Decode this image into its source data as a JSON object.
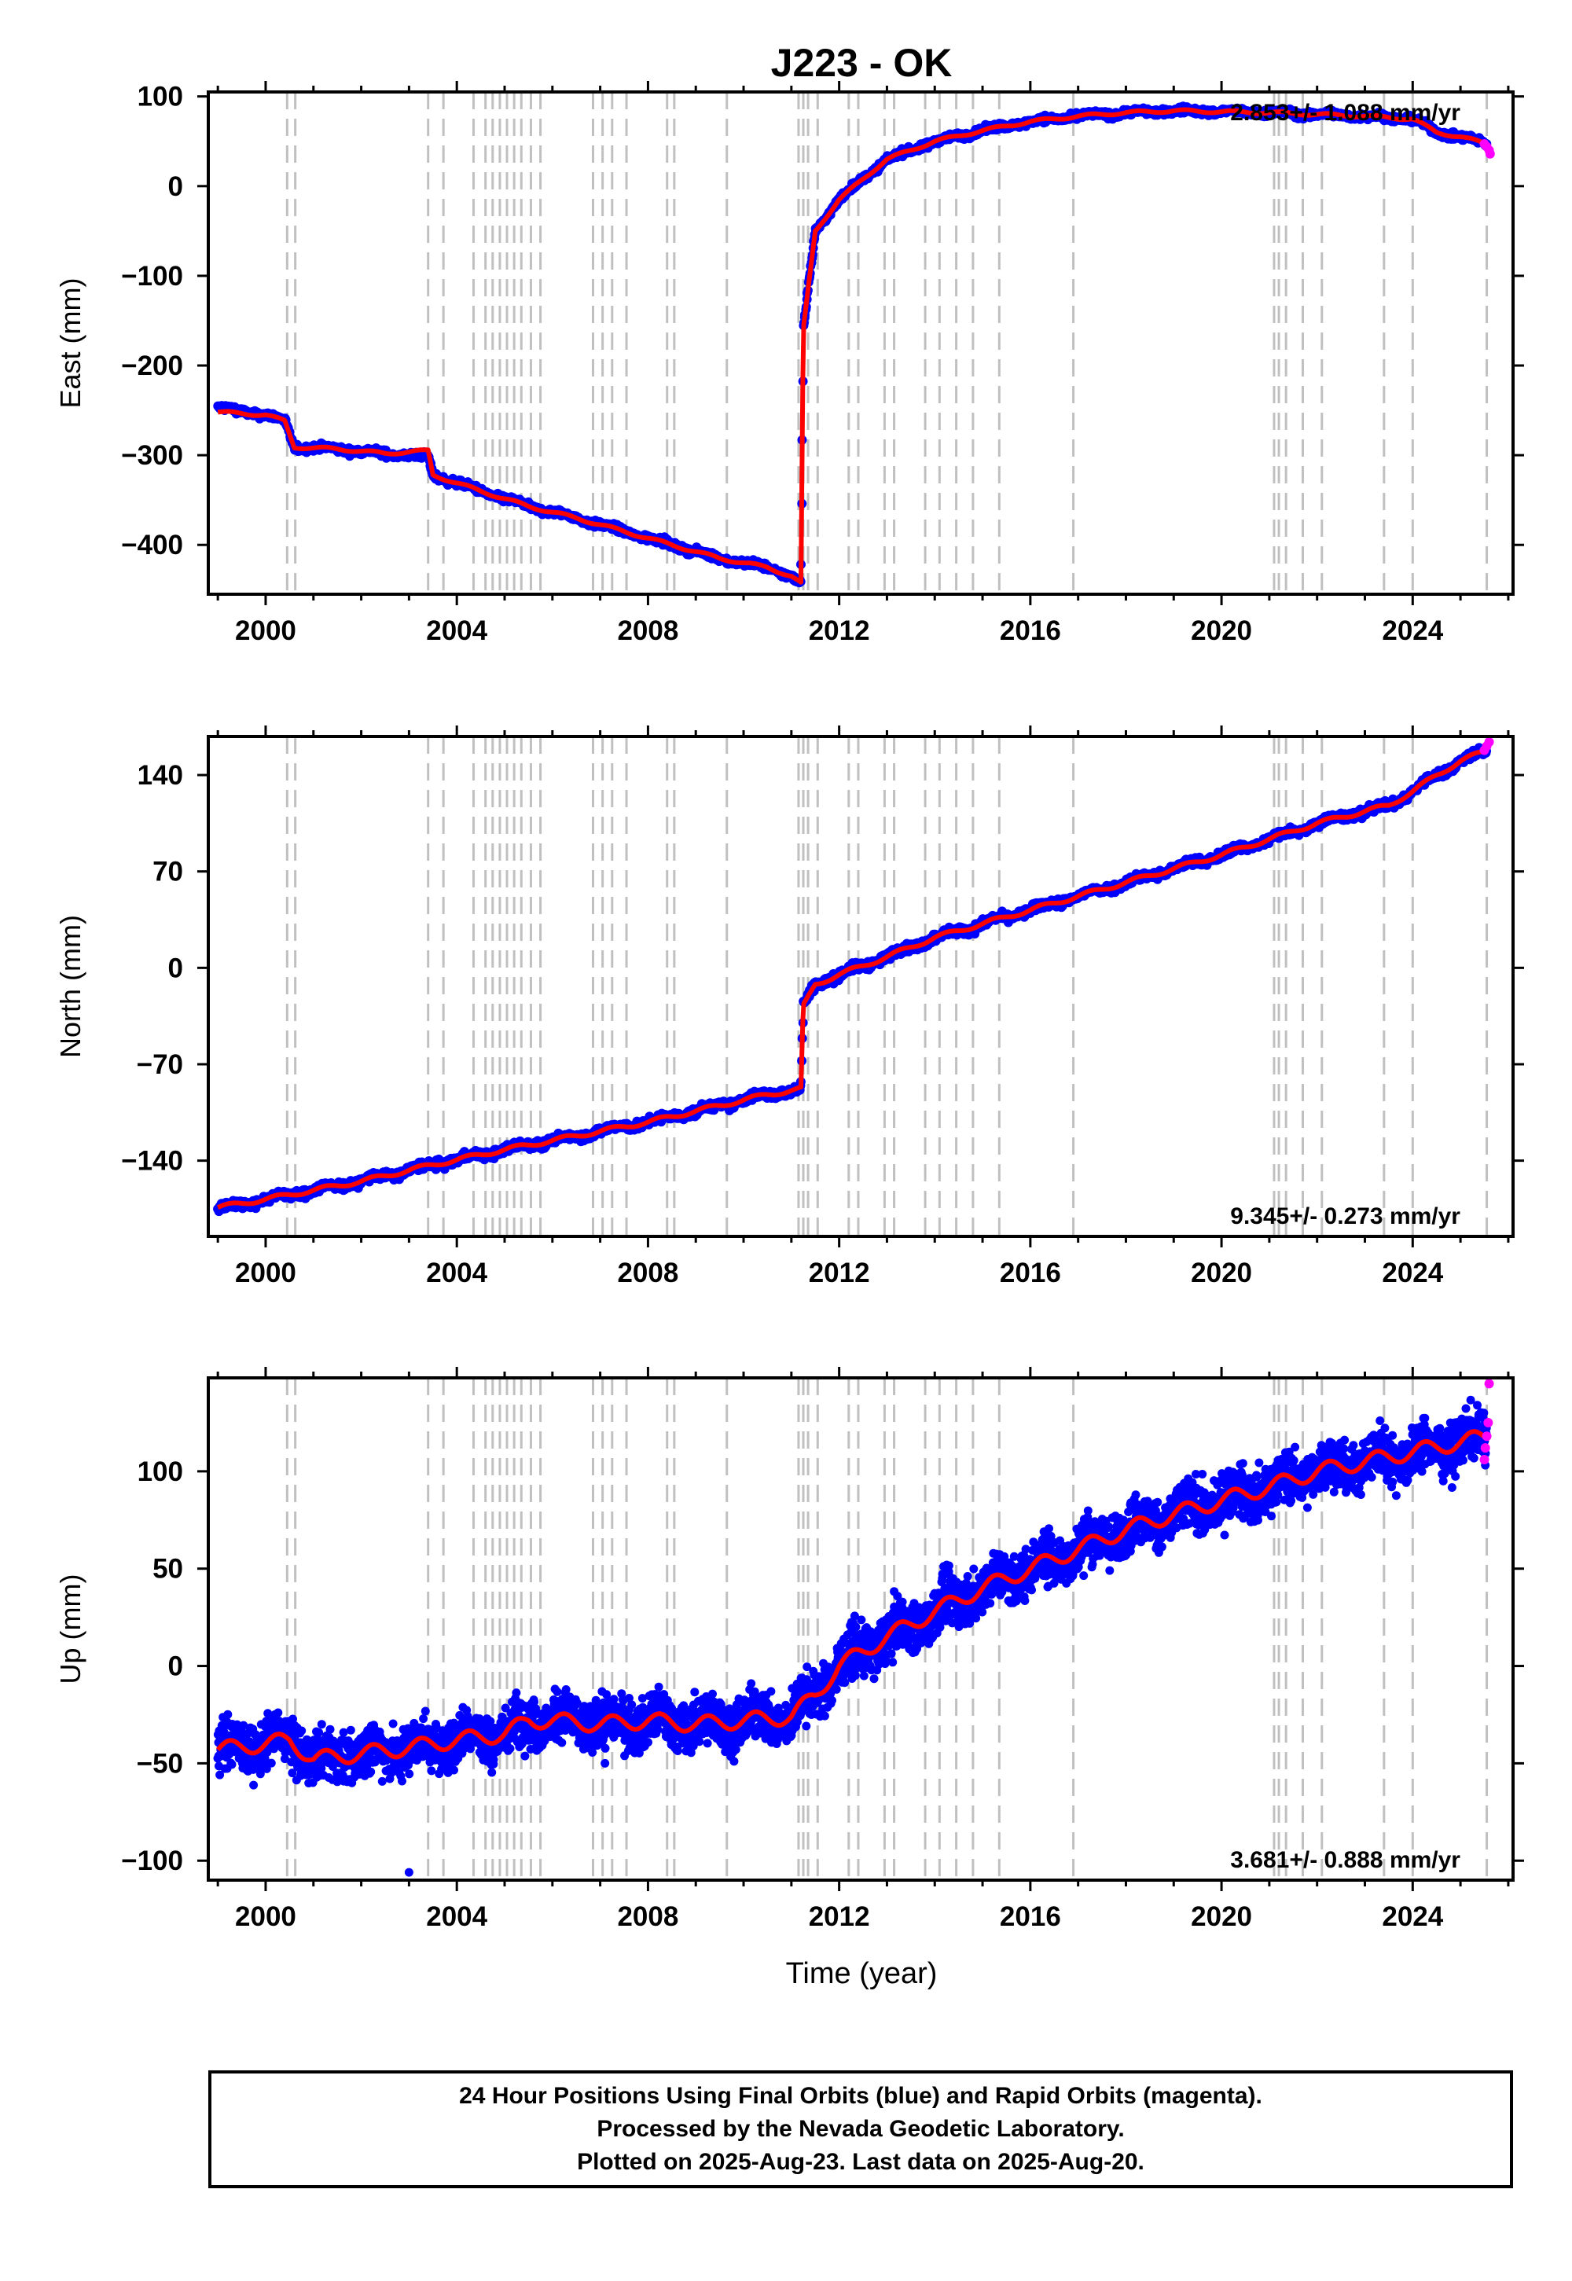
{
  "title": "J223 - OK",
  "xlabel": "Time (year)",
  "notes": [
    "24 Hour Positions Using Final Orbits (blue) and Rapid Orbits (magenta).",
    "Processed by the Nevada Geodetic Laboratory.",
    "Plotted on 2025-Aug-23. Last data on 2025-Aug-20."
  ],
  "colors": {
    "final": "#0000ff",
    "rapid": "#ff00ff",
    "model": "#ff0000",
    "event_lines": "#c0c0c0"
  },
  "chart_data": [
    {
      "type": "scatter",
      "panel": "east",
      "ylabel": "East (mm)",
      "xlim": [
        1998.8,
        2026.1
      ],
      "ylim": [
        -455,
        105
      ],
      "xticks": [
        2000,
        2004,
        2008,
        2012,
        2016,
        2020,
        2024
      ],
      "yticks": [
        100,
        0,
        -100,
        -200,
        -300,
        -400
      ],
      "ytick_labels": [
        "100",
        "0",
        "−100",
        "−200",
        "−300",
        "−400"
      ],
      "rate_text": "2.853+/- 1.088 mm/yr",
      "rate_position": "top-right",
      "grid": false,
      "series": [
        {
          "name": "Final Orbits (blue)",
          "x": [
            1999.0,
            2000.0,
            2000.4,
            2000.6,
            2001.5,
            2002.5,
            2003.4,
            2003.5,
            2004.5,
            2005.5,
            2006.5,
            2007.5,
            2008.5,
            2009.5,
            2010.5,
            2011.0,
            2011.2,
            2011.25,
            2011.5,
            2012.0,
            2012.5,
            2013.0,
            2014.0,
            2015.0,
            2016.0,
            2017.0,
            2018.0,
            2019.0,
            2020.0,
            2021.0,
            2022.0,
            2023.0,
            2024.0,
            2024.5,
            2025.0,
            2025.55
          ],
          "y": [
            -247,
            -255,
            -262,
            -291,
            -293,
            -298,
            -302,
            -322,
            -340,
            -357,
            -370,
            -385,
            -400,
            -415,
            -425,
            -435,
            -443,
            -160,
            -50,
            -15,
            8,
            30,
            50,
            62,
            72,
            78,
            82,
            84,
            83,
            82,
            80,
            78,
            75,
            60,
            55,
            47
          ]
        },
        {
          "name": "Rapid Orbits (magenta)",
          "x": [
            2025.5,
            2025.55,
            2025.6,
            2025.62
          ],
          "y": [
            47,
            44,
            40,
            36
          ]
        },
        {
          "name": "Model",
          "x": [
            1999.0,
            2000.0,
            2000.4,
            2000.6,
            2001.5,
            2002.5,
            2003.4,
            2003.5,
            2004.5,
            2005.5,
            2006.5,
            2007.5,
            2008.5,
            2009.5,
            2010.5,
            2011.0,
            2011.2,
            2011.25,
            2011.5,
            2012.0,
            2012.5,
            2013.0,
            2014.0,
            2015.0,
            2016.0,
            2017.0,
            2018.0,
            2019.0,
            2020.0,
            2021.0,
            2022.0,
            2023.0,
            2024.0,
            2024.5,
            2025.0,
            2025.55
          ],
          "y": [
            -252,
            -255,
            -262,
            -291,
            -293,
            -298,
            -295,
            -322,
            -340,
            -357,
            -370,
            -385,
            -400,
            -415,
            -425,
            -435,
            -443,
            -160,
            -50,
            -15,
            8,
            30,
            50,
            62,
            72,
            78,
            82,
            84,
            83,
            82,
            80,
            78,
            75,
            60,
            55,
            47
          ]
        }
      ]
    },
    {
      "type": "scatter",
      "panel": "north",
      "ylabel": "North (mm)",
      "xlim": [
        1998.8,
        2026.1
      ],
      "ylim": [
        -195,
        168
      ],
      "xticks": [
        2000,
        2004,
        2008,
        2012,
        2016,
        2020,
        2024
      ],
      "yticks": [
        140,
        70,
        0,
        -70,
        -140
      ],
      "ytick_labels": [
        "140",
        "70",
        "0",
        "−70",
        "−140"
      ],
      "rate_text": "9.345+/- 0.273 mm/yr",
      "rate_position": "bottom-right",
      "grid": false,
      "series": [
        {
          "name": "Final Orbits (blue)",
          "x": [
            1999.0,
            2000.0,
            2002.0,
            2003.5,
            2005.0,
            2006.5,
            2008.0,
            2009.5,
            2010.5,
            2011.2,
            2011.25,
            2011.5,
            2012.0,
            2013.0,
            2014.0,
            2016.0,
            2018.0,
            2020.0,
            2022.0,
            2023.5,
            2024.0,
            2024.5,
            2025.0,
            2025.55
          ],
          "y": [
            -175,
            -168,
            -155,
            -143,
            -132,
            -122,
            -112,
            -100,
            -92,
            -88,
            -28,
            -12,
            -5,
            8,
            22,
            42,
            62,
            82,
            105,
            118,
            128,
            140,
            150,
            158
          ]
        },
        {
          "name": "Rapid Orbits (magenta)",
          "x": [
            2025.5,
            2025.55,
            2025.6
          ],
          "y": [
            158,
            161,
            164
          ]
        },
        {
          "name": "Model",
          "x": [
            1999.0,
            2000.0,
            2002.0,
            2003.5,
            2005.0,
            2006.5,
            2008.0,
            2009.5,
            2010.5,
            2011.2,
            2011.25,
            2011.5,
            2012.0,
            2013.0,
            2014.0,
            2016.0,
            2018.0,
            2020.0,
            2022.0,
            2023.5,
            2024.0,
            2024.5,
            2025.0,
            2025.55
          ],
          "y": [
            -174,
            -168,
            -155,
            -143,
            -132,
            -122,
            -112,
            -100,
            -92,
            -88,
            -28,
            -12,
            -5,
            8,
            22,
            42,
            62,
            82,
            105,
            118,
            128,
            140,
            150,
            158
          ]
        }
      ]
    },
    {
      "type": "scatter",
      "panel": "up",
      "ylabel": "Up (mm)",
      "xlim": [
        1998.8,
        2026.1
      ],
      "ylim": [
        -110,
        148
      ],
      "xticks": [
        2000,
        2004,
        2008,
        2012,
        2016,
        2020,
        2024
      ],
      "yticks": [
        100,
        50,
        0,
        -50,
        -100
      ],
      "ytick_labels": [
        "100",
        "50",
        "0",
        "−50",
        "−100"
      ],
      "rate_text": "3.681+/- 0.888 mm/yr",
      "rate_position": "bottom-right",
      "grid": false,
      "series": [
        {
          "name": "Final Orbits (blue)",
          "x": [
            1999.0,
            2000.0,
            2000.5,
            2001.0,
            2002.0,
            2003.0,
            2004.0,
            2005.0,
            2005.5,
            2006.0,
            2007.0,
            2008.0,
            2009.0,
            2010.0,
            2011.0,
            2011.5,
            2012.0,
            2013.0,
            2014.0,
            2015.0,
            2016.0,
            2017.0,
            2018.0,
            2019.0,
            2020.0,
            2021.0,
            2022.0,
            2023.0,
            2024.0,
            2025.0,
            2025.55
          ],
          "y": [
            -43,
            -40,
            -38,
            -48,
            -45,
            -42,
            -38,
            -35,
            -28,
            -28,
            -30,
            -28,
            -30,
            -28,
            -26,
            -15,
            0,
            15,
            28,
            40,
            50,
            60,
            70,
            78,
            85,
            92,
            100,
            105,
            110,
            115,
            118
          ]
        },
        {
          "name": "Rapid Orbits (magenta)",
          "x": [
            2025.5,
            2025.52,
            2025.55,
            2025.58,
            2025.6
          ],
          "y": [
            106,
            112,
            118,
            125,
            145
          ]
        },
        {
          "name": "Model",
          "x": [
            1999.0,
            2000.0,
            2000.5,
            2001.0,
            2002.0,
            2003.0,
            2004.0,
            2005.0,
            2005.5,
            2006.0,
            2007.0,
            2008.0,
            2009.0,
            2010.0,
            2011.0,
            2011.5,
            2012.0,
            2013.0,
            2014.0,
            2015.0,
            2016.0,
            2017.0,
            2018.0,
            2019.0,
            2020.0,
            2021.0,
            2022.0,
            2023.0,
            2024.0,
            2025.0,
            2025.55
          ],
          "y": [
            -43,
            -40,
            -38,
            -48,
            -45,
            -42,
            -38,
            -35,
            -28,
            -28,
            -30,
            -28,
            -30,
            -28,
            -26,
            -15,
            0,
            15,
            28,
            40,
            50,
            60,
            70,
            78,
            85,
            92,
            100,
            105,
            110,
            115,
            118
          ]
        }
      ]
    }
  ],
  "event_epochs": [
    2000.45,
    2000.62,
    2003.4,
    2003.72,
    2004.35,
    2004.6,
    2004.75,
    2004.9,
    2005.05,
    2005.2,
    2005.35,
    2005.55,
    2005.75,
    2006.85,
    2007.05,
    2007.25,
    2007.55,
    2008.4,
    2008.55,
    2009.65,
    2011.15,
    2011.25,
    2011.35,
    2011.55,
    2012.2,
    2012.4,
    2012.95,
    2013.15,
    2013.8,
    2014.1,
    2014.45,
    2014.8,
    2015.35,
    2016.9,
    2021.1,
    2021.2,
    2021.35,
    2021.7,
    2022.1,
    2023.4,
    2024.0,
    2025.55
  ]
}
